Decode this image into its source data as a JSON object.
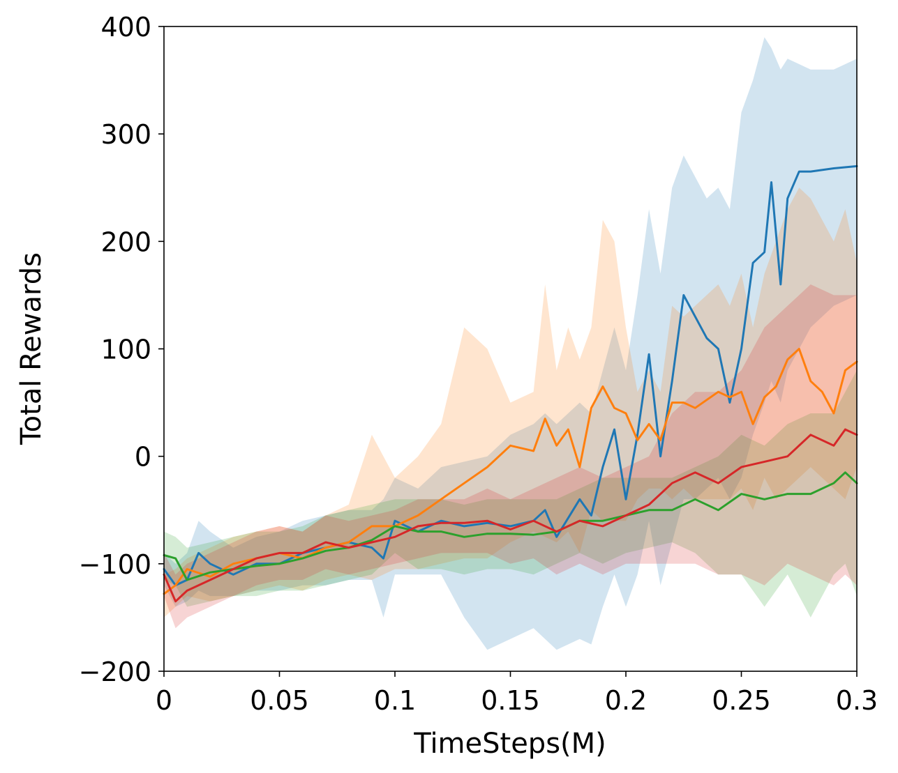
{
  "chart_data": {
    "type": "line",
    "title": "",
    "xlabel": "TimeSteps(M)",
    "ylabel": "Total Rewards",
    "xlim": [
      0,
      0.3
    ],
    "ylim": [
      -200,
      400
    ],
    "x_ticks": [
      0,
      0.05,
      0.1,
      0.15,
      0.2,
      0.25,
      0.3
    ],
    "x_tick_labels": [
      "0",
      "0.05",
      "0.1",
      "0.15",
      "0.2",
      "0.25",
      "0.3"
    ],
    "y_ticks": [
      -200,
      -100,
      0,
      100,
      200,
      300,
      400
    ],
    "y_tick_labels": [
      "−200",
      "−100",
      "0",
      "100",
      "200",
      "300",
      "400"
    ],
    "grid": false,
    "legend": "none",
    "series": [
      {
        "color": "#1f77b4",
        "x": [
          0,
          0.005,
          0.01,
          0.015,
          0.02,
          0.03,
          0.04,
          0.05,
          0.06,
          0.07,
          0.08,
          0.09,
          0.095,
          0.1,
          0.11,
          0.12,
          0.13,
          0.14,
          0.15,
          0.16,
          0.165,
          0.17,
          0.18,
          0.185,
          0.19,
          0.195,
          0.2,
          0.205,
          0.21,
          0.215,
          0.22,
          0.225,
          0.23,
          0.235,
          0.24,
          0.245,
          0.25,
          0.255,
          0.26,
          0.263,
          0.267,
          0.27,
          0.275,
          0.28,
          0.29,
          0.3
        ],
        "y": [
          -105,
          -120,
          -115,
          -90,
          -100,
          -110,
          -100,
          -100,
          -90,
          -85,
          -80,
          -85,
          -95,
          -60,
          -70,
          -60,
          -65,
          -62,
          -65,
          -60,
          -50,
          -75,
          -40,
          -55,
          -10,
          25,
          -40,
          20,
          95,
          0,
          70,
          150,
          130,
          110,
          100,
          50,
          100,
          180,
          190,
          255,
          160,
          240,
          265,
          265,
          268,
          270
        ],
        "band_upper": [
          -90,
          -100,
          -90,
          -60,
          -70,
          -85,
          -75,
          -70,
          -60,
          -55,
          -50,
          -50,
          -40,
          -20,
          -30,
          -10,
          -5,
          0,
          20,
          30,
          40,
          30,
          50,
          40,
          80,
          120,
          80,
          150,
          230,
          170,
          250,
          280,
          260,
          240,
          250,
          230,
          320,
          350,
          390,
          380,
          360,
          370,
          365,
          360,
          360,
          370
        ],
        "band_lower": [
          -120,
          -140,
          -135,
          -125,
          -130,
          -130,
          -125,
          -125,
          -120,
          -120,
          -115,
          -115,
          -150,
          -110,
          -110,
          -110,
          -150,
          -180,
          -170,
          -160,
          -170,
          -180,
          -170,
          -175,
          -140,
          -110,
          -140,
          -110,
          -60,
          -120,
          -80,
          -40,
          -40,
          -30,
          -20,
          -40,
          -20,
          20,
          50,
          70,
          50,
          80,
          100,
          120,
          140,
          150
        ]
      },
      {
        "color": "#ff7f0e",
        "x": [
          0,
          0.005,
          0.01,
          0.02,
          0.03,
          0.04,
          0.05,
          0.06,
          0.07,
          0.08,
          0.09,
          0.1,
          0.11,
          0.12,
          0.13,
          0.14,
          0.15,
          0.16,
          0.165,
          0.17,
          0.175,
          0.18,
          0.185,
          0.19,
          0.195,
          0.2,
          0.205,
          0.21,
          0.215,
          0.22,
          0.225,
          0.23,
          0.24,
          0.245,
          0.25,
          0.255,
          0.26,
          0.265,
          0.27,
          0.275,
          0.28,
          0.285,
          0.29,
          0.295,
          0.3
        ],
        "y": [
          -128,
          -120,
          -105,
          -112,
          -100,
          -95,
          -90,
          -95,
          -85,
          -80,
          -65,
          -65,
          -55,
          -40,
          -25,
          -10,
          10,
          5,
          35,
          10,
          25,
          -10,
          45,
          65,
          45,
          40,
          15,
          30,
          15,
          50,
          50,
          45,
          60,
          55,
          60,
          30,
          55,
          65,
          90,
          100,
          70,
          60,
          40,
          80,
          88
        ],
        "band_upper": [
          -110,
          -105,
          -95,
          -85,
          -75,
          -70,
          -65,
          -70,
          -55,
          -45,
          20,
          -20,
          0,
          30,
          120,
          100,
          50,
          60,
          160,
          80,
          120,
          90,
          120,
          220,
          200,
          120,
          60,
          80,
          60,
          140,
          130,
          140,
          160,
          140,
          170,
          120,
          170,
          200,
          230,
          250,
          240,
          220,
          200,
          230,
          180
        ],
        "band_lower": [
          -150,
          -140,
          -130,
          -135,
          -130,
          -125,
          -120,
          -125,
          -115,
          -110,
          -115,
          -105,
          -105,
          -100,
          -95,
          -95,
          -80,
          -70,
          -75,
          -80,
          -70,
          -90,
          -50,
          -60,
          -60,
          -60,
          -40,
          -30,
          -30,
          -40,
          -30,
          -40,
          -40,
          -40,
          -30,
          -50,
          -20,
          -40,
          -30,
          -20,
          -10,
          -20,
          -30,
          -40,
          -10
        ]
      },
      {
        "color": "#2ca02c",
        "x": [
          0,
          0.005,
          0.01,
          0.02,
          0.03,
          0.04,
          0.05,
          0.06,
          0.07,
          0.08,
          0.09,
          0.1,
          0.11,
          0.12,
          0.13,
          0.14,
          0.15,
          0.16,
          0.17,
          0.18,
          0.19,
          0.2,
          0.21,
          0.22,
          0.23,
          0.24,
          0.25,
          0.26,
          0.27,
          0.28,
          0.29,
          0.295,
          0.3
        ],
        "y": [
          -92,
          -95,
          -115,
          -108,
          -105,
          -102,
          -100,
          -95,
          -88,
          -85,
          -78,
          -65,
          -70,
          -70,
          -75,
          -72,
          -72,
          -73,
          -70,
          -60,
          -60,
          -55,
          -50,
          -50,
          -40,
          -50,
          -35,
          -40,
          -35,
          -35,
          -25,
          -15,
          -25
        ],
        "band_upper": [
          -70,
          -75,
          -85,
          -80,
          -75,
          -70,
          -70,
          -65,
          -55,
          -50,
          -45,
          -40,
          -40,
          -40,
          -45,
          -40,
          -40,
          -40,
          -40,
          -30,
          -20,
          -20,
          -20,
          -20,
          -10,
          0,
          20,
          10,
          30,
          40,
          40,
          60,
          80
        ],
        "band_lower": [
          -115,
          -120,
          -140,
          -135,
          -130,
          -130,
          -125,
          -125,
          -120,
          -115,
          -110,
          -90,
          -105,
          -105,
          -110,
          -105,
          -105,
          -110,
          -100,
          -90,
          -100,
          -90,
          -85,
          -80,
          -90,
          -110,
          -110,
          -140,
          -110,
          -150,
          -110,
          -100,
          -130
        ]
      },
      {
        "color": "#d62728",
        "x": [
          0,
          0.005,
          0.01,
          0.02,
          0.03,
          0.04,
          0.05,
          0.06,
          0.07,
          0.08,
          0.09,
          0.1,
          0.11,
          0.12,
          0.13,
          0.14,
          0.15,
          0.16,
          0.17,
          0.18,
          0.19,
          0.2,
          0.21,
          0.22,
          0.23,
          0.24,
          0.25,
          0.26,
          0.27,
          0.28,
          0.29,
          0.295,
          0.3
        ],
        "y": [
          -110,
          -135,
          -125,
          -115,
          -105,
          -95,
          -90,
          -90,
          -80,
          -85,
          -80,
          -75,
          -65,
          -62,
          -62,
          -60,
          -68,
          -60,
          -70,
          -60,
          -65,
          -55,
          -45,
          -25,
          -15,
          -25,
          -10,
          -5,
          0,
          20,
          10,
          25,
          20
        ],
        "band_upper": [
          -90,
          -110,
          -100,
          -90,
          -80,
          -70,
          -65,
          -70,
          -55,
          -60,
          -55,
          -50,
          -40,
          -40,
          -40,
          -30,
          -40,
          -30,
          -20,
          -10,
          -20,
          -10,
          0,
          40,
          60,
          60,
          80,
          120,
          140,
          160,
          150,
          150,
          150
        ],
        "band_lower": [
          -130,
          -160,
          -150,
          -140,
          -130,
          -120,
          -115,
          -115,
          -105,
          -110,
          -105,
          -100,
          -95,
          -90,
          -90,
          -90,
          -100,
          -95,
          -110,
          -100,
          -110,
          -100,
          -100,
          -100,
          -100,
          -110,
          -110,
          -120,
          -100,
          -110,
          -120,
          -110,
          -120
        ]
      }
    ]
  }
}
